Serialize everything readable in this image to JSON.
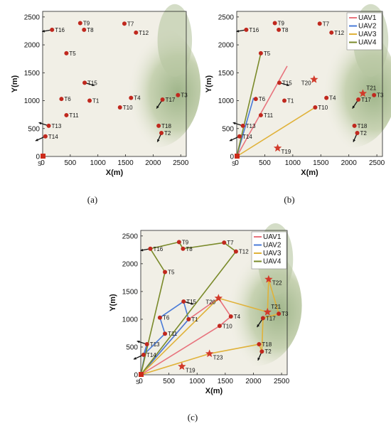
{
  "colors": {
    "UAV1": "#e8737d",
    "UAV2": "#4a7bd8",
    "UAV3": "#e0b23a",
    "UAV4": "#7a8a2a",
    "target": "#c0281e",
    "start": "#cc2a1a",
    "obstacle": "#3a3a3a",
    "star": "#d23a2a"
  },
  "chart_data": [
    {
      "type": "scatter",
      "panel": "(a)",
      "xlabel": "X(m)",
      "ylabel": "Y(m)",
      "xlim": [
        0,
        2600
      ],
      "ylim": [
        0,
        2600
      ],
      "xticks": [
        0,
        500,
        1000,
        1500,
        2000,
        2500
      ],
      "yticks": [
        0,
        500,
        1000,
        1500,
        2000,
        2500
      ],
      "start": {
        "label": "S",
        "x": 0,
        "y": 0
      },
      "targets": [
        {
          "label": "T1",
          "x": 850,
          "y": 1000
        },
        {
          "label": "T2",
          "x": 2150,
          "y": 420
        },
        {
          "label": "T3",
          "x": 2450,
          "y": 1100
        },
        {
          "label": "T4",
          "x": 1600,
          "y": 1050
        },
        {
          "label": "T5",
          "x": 430,
          "y": 1850
        },
        {
          "label": "T6",
          "x": 340,
          "y": 1030
        },
        {
          "label": "T7",
          "x": 1480,
          "y": 2380
        },
        {
          "label": "T8",
          "x": 750,
          "y": 2270
        },
        {
          "label": "T9",
          "x": 680,
          "y": 2390
        },
        {
          "label": "T10",
          "x": 1400,
          "y": 880
        },
        {
          "label": "T11",
          "x": 430,
          "y": 740
        },
        {
          "label": "T12",
          "x": 1690,
          "y": 2220
        },
        {
          "label": "T13",
          "x": 110,
          "y": 550
        },
        {
          "label": "T14",
          "x": 50,
          "y": 360
        },
        {
          "label": "T15",
          "x": 760,
          "y": 1320
        },
        {
          "label": "T16",
          "x": 170,
          "y": 2270
        },
        {
          "label": "T17",
          "x": 2170,
          "y": 1020
        },
        {
          "label": "T18",
          "x": 2100,
          "y": 550
        }
      ]
    },
    {
      "type": "line",
      "panel": "(b)",
      "xlabel": "X(m)",
      "ylabel": "Y(m)",
      "xlim": [
        0,
        2600
      ],
      "ylim": [
        0,
        2600
      ],
      "xticks": [
        0,
        500,
        1000,
        1500,
        2000,
        2500
      ],
      "yticks": [
        0,
        500,
        1000,
        1500,
        2000,
        2500
      ],
      "legend": [
        "UAV1",
        "UAV2",
        "UAV3",
        "UAV4"
      ],
      "new_targets": [
        {
          "label": "T19",
          "x": 730,
          "y": 150
        },
        {
          "label": "T20",
          "x": 1380,
          "y": 1380
        },
        {
          "label": "T21",
          "x": 2250,
          "y": 1130
        }
      ],
      "series": [
        {
          "name": "UAV1",
          "x": [
            0,
            900
          ],
          "y": [
            0,
            1620
          ]
        },
        {
          "name": "UAV2",
          "x": [
            0,
            300
          ],
          "y": [
            0,
            1050
          ]
        },
        {
          "name": "UAV3",
          "x": [
            0,
            1400
          ],
          "y": [
            0,
            880
          ]
        },
        {
          "name": "UAV4",
          "x": [
            0,
            430
          ],
          "y": [
            0,
            1850
          ]
        }
      ]
    },
    {
      "type": "line",
      "panel": "(c)",
      "xlabel": "X(m)",
      "ylabel": "Y(m)",
      "xlim": [
        0,
        2600
      ],
      "ylim": [
        0,
        2600
      ],
      "xticks": [
        0,
        500,
        1000,
        1500,
        2000,
        2500
      ],
      "yticks": [
        0,
        500,
        1000,
        1500,
        2000,
        2500
      ],
      "legend": [
        "UAV1",
        "UAV2",
        "UAV3",
        "UAV4"
      ],
      "new_targets": [
        {
          "label": "T19",
          "x": 730,
          "y": 150
        },
        {
          "label": "T20",
          "x": 1380,
          "y": 1380
        },
        {
          "label": "T21",
          "x": 2250,
          "y": 1130
        },
        {
          "label": "T22",
          "x": 2270,
          "y": 1720
        },
        {
          "label": "T23",
          "x": 1220,
          "y": 380
        }
      ],
      "series": [
        {
          "name": "UAV1",
          "x": [
            0,
            850,
            1380,
            1600,
            1400,
            0
          ],
          "y": [
            0,
            1000,
            1380,
            1050,
            880,
            0
          ]
        },
        {
          "name": "UAV2",
          "x": [
            0,
            110,
            50,
            430,
            340,
            760,
            850,
            0
          ],
          "y": [
            0,
            550,
            360,
            740,
            1030,
            1320,
            1000,
            0
          ]
        },
        {
          "name": "UAV3",
          "x": [
            0,
            1220,
            2100,
            2150,
            2170,
            2450,
            2270,
            2250,
            1380,
            0
          ],
          "y": [
            0,
            380,
            550,
            420,
            1020,
            1100,
            1720,
            1130,
            1380,
            0
          ]
        },
        {
          "name": "UAV4",
          "x": [
            0,
            430,
            170,
            680,
            750,
            1480,
            1690,
            0
          ],
          "y": [
            0,
            1850,
            2270,
            2390,
            2270,
            2380,
            2220,
            0
          ]
        }
      ]
    }
  ]
}
